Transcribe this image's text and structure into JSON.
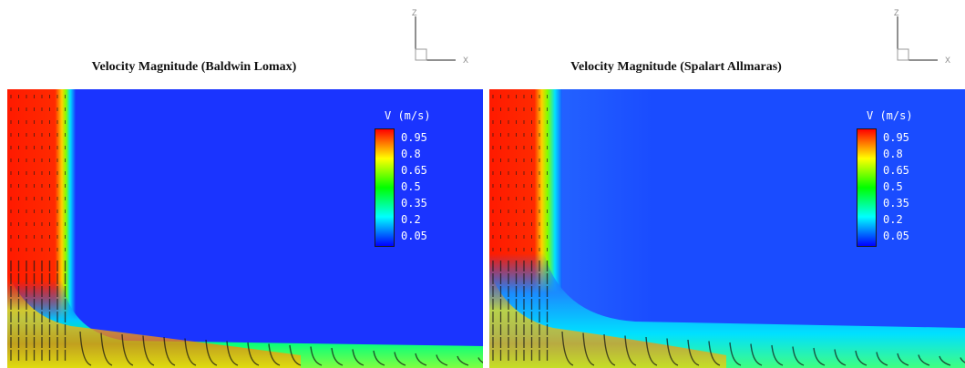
{
  "panels": [
    {
      "title": "Velocity Magnitude (Baldwin Lomax)",
      "legend_title": "V (m/s)",
      "legend_ticks": [
        "0.95",
        "0.8",
        "0.65",
        "0.5",
        "0.35",
        "0.2",
        "0.05"
      ],
      "axes_triad": {
        "vertical": "Z",
        "horizontal": "X"
      }
    },
    {
      "title": "Velocity Magnitude (Spalart Allmaras)",
      "legend_title": "V (m/s)",
      "legend_ticks": [
        "0.95",
        "0.8",
        "0.65",
        "0.5",
        "0.35",
        "0.2",
        "0.05"
      ],
      "axes_triad": {
        "vertical": "Z",
        "horizontal": "X"
      }
    }
  ],
  "chart_data": [
    {
      "type": "heatmap",
      "title": "Velocity Magnitude (Baldwin Lomax)",
      "colorbar": {
        "label": "V (m/s)",
        "min": 0.05,
        "max": 0.95,
        "ticks": [
          0.95,
          0.8,
          0.65,
          0.5,
          0.35,
          0.2,
          0.05
        ],
        "colormap": [
          "#0000ff",
          "#00ffff",
          "#00ff00",
          "#ffff00",
          "#ff0000"
        ]
      },
      "features": {
        "jet_velocity": 0.95,
        "ambient_velocity": 0.05,
        "wall_jet_velocity": 0.4
      }
    },
    {
      "type": "heatmap",
      "title": "Velocity Magnitude (Spalart Allmaras)",
      "colorbar": {
        "label": "V (m/s)",
        "min": 0.05,
        "max": 0.95,
        "ticks": [
          0.95,
          0.8,
          0.65,
          0.5,
          0.35,
          0.2,
          0.05
        ],
        "colormap": [
          "#0000ff",
          "#00ffff",
          "#00ff00",
          "#ffff00",
          "#ff0000"
        ]
      },
      "features": {
        "jet_velocity": 0.95,
        "ambient_velocity": 0.05,
        "wall_jet_velocity": 0.35
      }
    }
  ]
}
